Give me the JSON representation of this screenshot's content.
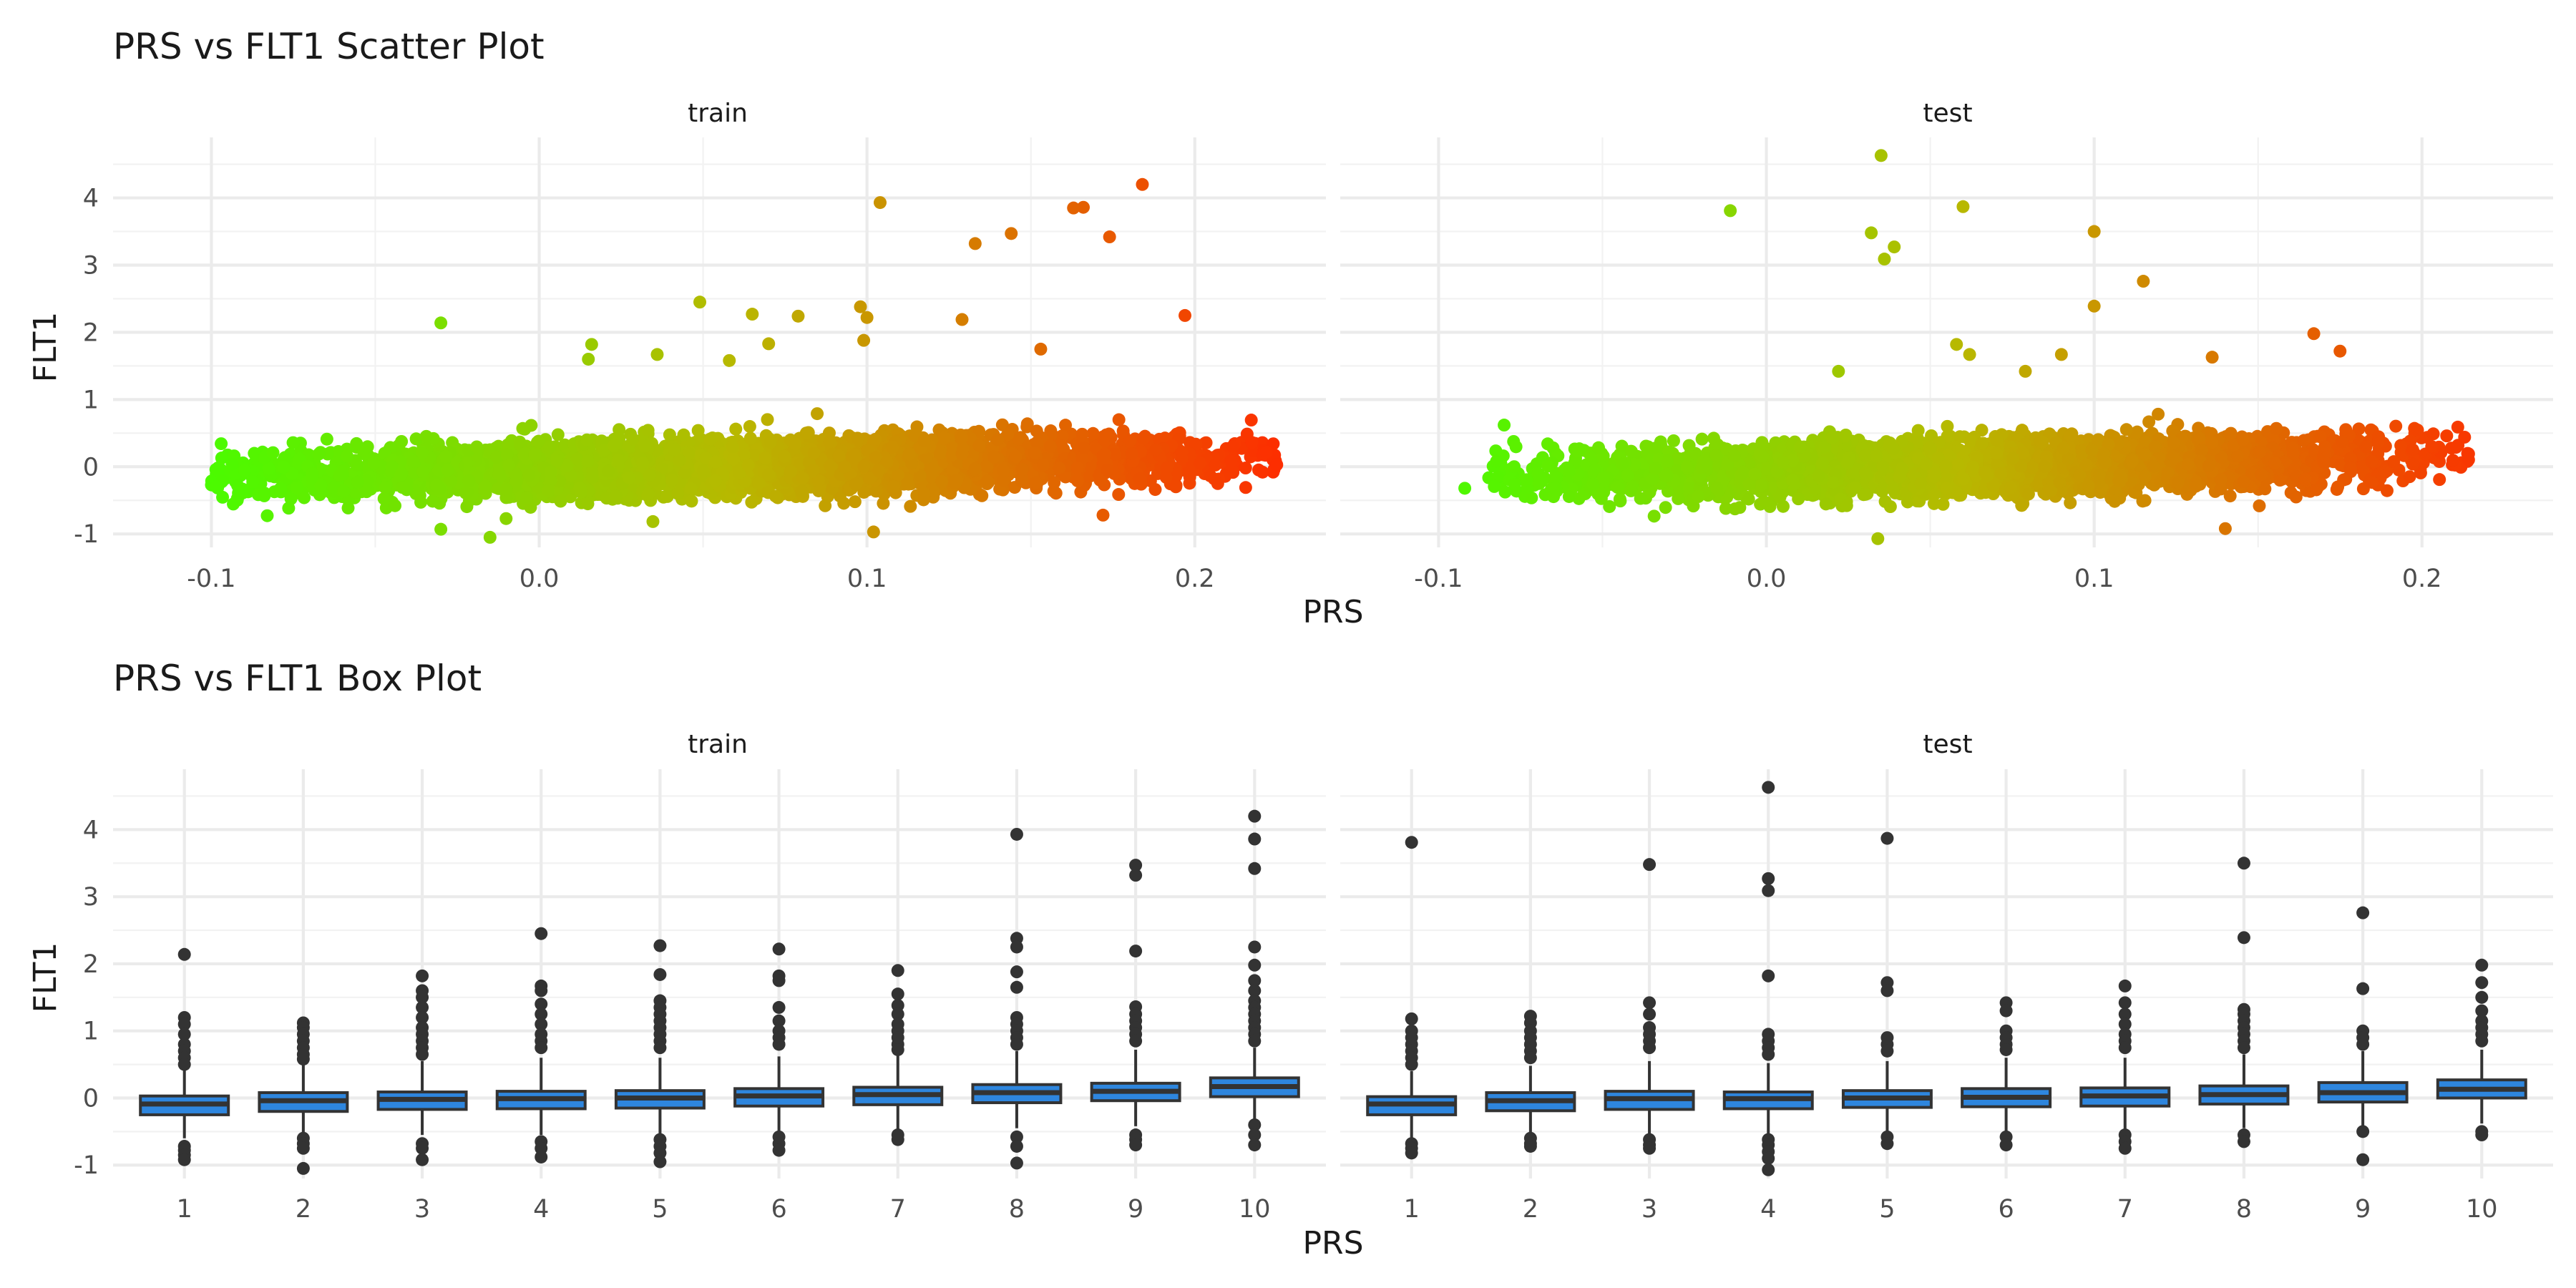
{
  "chart_data": [
    {
      "type": "scatter",
      "title": "PRS vs FLT1 Scatter Plot",
      "xlabel": "PRS",
      "ylabel": "FLT1",
      "xlim": [
        -0.13,
        0.24
      ],
      "ylim": [
        -1.2,
        4.9
      ],
      "x_ticks": [
        "-0.1",
        "0.0",
        "0.1",
        "0.2"
      ],
      "y_ticks": [
        "-1",
        "0",
        "1",
        "2",
        "3",
        "4"
      ],
      "grid": true,
      "color_scale": {
        "low": "#44ff00",
        "mid": "#b8b800",
        "high": "#ff2a00",
        "range": [
          -0.11,
          0.23
        ]
      },
      "panels": [
        {
          "name": "train",
          "bulk": {
            "x_range": [
              -0.1,
              0.225
            ],
            "y_range": [
              -1.0,
              1.2
            ],
            "y_slope_per_unit_x": 1.6
          },
          "outliers": [
            {
              "x": 0.184,
              "y": 4.2
            },
            {
              "x": 0.104,
              "y": 3.93
            },
            {
              "x": 0.166,
              "y": 3.86
            },
            {
              "x": 0.163,
              "y": 3.85
            },
            {
              "x": 0.144,
              "y": 3.47
            },
            {
              "x": 0.133,
              "y": 3.32
            },
            {
              "x": 0.174,
              "y": 3.42
            },
            {
              "x": 0.197,
              "y": 2.25
            },
            {
              "x": 0.129,
              "y": 2.19
            },
            {
              "x": -0.03,
              "y": 2.14
            },
            {
              "x": 0.049,
              "y": 2.45
            },
            {
              "x": 0.065,
              "y": 2.27
            },
            {
              "x": 0.098,
              "y": 2.38
            },
            {
              "x": 0.079,
              "y": 2.24
            },
            {
              "x": 0.1,
              "y": 2.22
            },
            {
              "x": 0.016,
              "y": 1.82
            },
            {
              "x": 0.036,
              "y": 1.67
            },
            {
              "x": 0.153,
              "y": 1.75
            },
            {
              "x": 0.099,
              "y": 1.88
            },
            {
              "x": 0.07,
              "y": 1.83
            },
            {
              "x": 0.015,
              "y": 1.6
            },
            {
              "x": 0.058,
              "y": 1.58
            },
            {
              "x": -0.092,
              "y": -0.28
            },
            {
              "x": 0.207,
              "y": -0.25
            },
            {
              "x": 0.225,
              "y": 0.03
            },
            {
              "x": -0.015,
              "y": -1.05
            },
            {
              "x": 0.102,
              "y": -0.97
            },
            {
              "x": 0.172,
              "y": -0.72
            },
            {
              "x": -0.03,
              "y": -0.93
            }
          ]
        },
        {
          "name": "test",
          "bulk": {
            "x_range": [
              -0.085,
              0.215
            ],
            "y_range": [
              -0.9,
              1.0
            ],
            "y_slope_per_unit_x": 1.4
          },
          "outliers": [
            {
              "x": 0.035,
              "y": 4.63
            },
            {
              "x": 0.06,
              "y": 3.87
            },
            {
              "x": -0.011,
              "y": 3.81
            },
            {
              "x": 0.1,
              "y": 3.5
            },
            {
              "x": 0.032,
              "y": 3.48
            },
            {
              "x": 0.039,
              "y": 3.27
            },
            {
              "x": 0.036,
              "y": 3.09
            },
            {
              "x": 0.115,
              "y": 2.76
            },
            {
              "x": 0.1,
              "y": 2.39
            },
            {
              "x": 0.167,
              "y": 1.98
            },
            {
              "x": 0.175,
              "y": 1.72
            },
            {
              "x": 0.058,
              "y": 1.82
            },
            {
              "x": 0.062,
              "y": 1.67
            },
            {
              "x": 0.079,
              "y": 1.42
            },
            {
              "x": 0.09,
              "y": 1.67
            },
            {
              "x": 0.136,
              "y": 1.63
            },
            {
              "x": 0.022,
              "y": 1.42
            },
            {
              "x": -0.092,
              "y": -0.32
            },
            {
              "x": 0.213,
              "y": 0.44
            },
            {
              "x": 0.034,
              "y": -1.07
            },
            {
              "x": 0.14,
              "y": -0.92
            },
            {
              "x": -0.08,
              "y": 0.62
            }
          ]
        }
      ]
    },
    {
      "type": "box",
      "title": "PRS vs FLT1 Box Plot",
      "xlabel": "PRS",
      "ylabel": "FLT1",
      "ylim": [
        -1.2,
        4.9
      ],
      "categories": [
        "1",
        "2",
        "3",
        "4",
        "5",
        "6",
        "7",
        "8",
        "9",
        "10"
      ],
      "y_ticks": [
        "-1",
        "0",
        "1",
        "2",
        "3",
        "4"
      ],
      "grid": true,
      "fill_color": "#2e86de",
      "panels": [
        {
          "name": "train",
          "boxes": [
            {
              "q1": -0.25,
              "median": -0.09,
              "q3": 0.03,
              "whisker_low": -0.6,
              "whisker_high": 0.45,
              "outliers": [
                2.14,
                1.2,
                1.1,
                0.95,
                0.8,
                0.7,
                0.6,
                0.5,
                -0.72,
                -0.78,
                -0.85,
                -0.92
              ]
            },
            {
              "q1": -0.2,
              "median": -0.04,
              "q3": 0.08,
              "whisker_low": -0.55,
              "whisker_high": 0.5,
              "outliers": [
                1.12,
                1.05,
                0.95,
                0.85,
                0.75,
                0.65,
                0.58,
                -0.6,
                -0.68,
                -0.75,
                -1.05
              ]
            },
            {
              "q1": -0.17,
              "median": -0.02,
              "q3": 0.09,
              "whisker_low": -0.55,
              "whisker_high": 0.55,
              "outliers": [
                1.82,
                1.6,
                1.5,
                1.35,
                1.2,
                1.05,
                0.95,
                0.85,
                0.75,
                0.65,
                -0.68,
                -0.75,
                -0.92
              ]
            },
            {
              "q1": -0.16,
              "median": -0.01,
              "q3": 0.1,
              "whisker_low": -0.55,
              "whisker_high": 0.6,
              "outliers": [
                2.45,
                1.67,
                1.6,
                1.4,
                1.25,
                1.1,
                0.95,
                0.85,
                0.75,
                -0.65,
                -0.75,
                -0.88
              ]
            },
            {
              "q1": -0.15,
              "median": 0.0,
              "q3": 0.11,
              "whisker_low": -0.55,
              "whisker_high": 0.6,
              "outliers": [
                2.27,
                1.84,
                1.45,
                1.35,
                1.25,
                1.15,
                1.05,
                0.95,
                0.85,
                0.75,
                -0.62,
                -0.72,
                -0.82,
                -0.95
              ]
            },
            {
              "q1": -0.12,
              "median": 0.03,
              "q3": 0.14,
              "whisker_low": -0.5,
              "whisker_high": 0.62,
              "outliers": [
                2.22,
                1.82,
                1.75,
                1.35,
                1.15,
                1.0,
                0.9,
                0.8,
                -0.58,
                -0.68,
                -0.78
              ]
            },
            {
              "q1": -0.1,
              "median": 0.05,
              "q3": 0.16,
              "whisker_low": -0.48,
              "whisker_high": 0.64,
              "outliers": [
                1.9,
                1.55,
                1.38,
                1.25,
                1.1,
                1.0,
                0.9,
                0.8,
                0.72,
                -0.55,
                -0.62
              ]
            },
            {
              "q1": -0.07,
              "median": 0.08,
              "q3": 0.2,
              "whisker_low": -0.45,
              "whisker_high": 0.7,
              "outliers": [
                3.93,
                2.38,
                2.25,
                1.88,
                1.65,
                1.2,
                1.1,
                1.0,
                0.9,
                0.8,
                -0.58,
                -0.72,
                -0.97
              ]
            },
            {
              "q1": -0.04,
              "median": 0.1,
              "q3": 0.22,
              "whisker_low": -0.42,
              "whisker_high": 0.72,
              "outliers": [
                3.47,
                3.32,
                2.19,
                1.36,
                1.25,
                1.15,
                1.05,
                0.95,
                0.85,
                -0.55,
                -0.62,
                -0.7
              ]
            },
            {
              "q1": 0.02,
              "median": 0.17,
              "q3": 0.3,
              "whisker_low": -0.35,
              "whisker_high": 0.75,
              "outliers": [
                4.2,
                3.86,
                3.42,
                2.25,
                1.98,
                1.75,
                1.6,
                1.45,
                1.35,
                1.25,
                1.15,
                1.05,
                0.95,
                0.85,
                -0.4,
                -0.55,
                -0.7
              ]
            }
          ]
        },
        {
          "name": "test",
          "boxes": [
            {
              "q1": -0.25,
              "median": -0.09,
              "q3": 0.02,
              "whisker_low": -0.6,
              "whisker_high": 0.4,
              "outliers": [
                3.81,
                1.18,
                1.0,
                0.9,
                0.8,
                0.7,
                0.6,
                0.5,
                -0.68,
                -0.75,
                -0.82
              ]
            },
            {
              "q1": -0.19,
              "median": -0.04,
              "q3": 0.08,
              "whisker_low": -0.52,
              "whisker_high": 0.48,
              "outliers": [
                1.22,
                1.12,
                1.0,
                0.9,
                0.8,
                0.7,
                0.6,
                -0.6,
                -0.68,
                -0.72
              ]
            },
            {
              "q1": -0.17,
              "median": -0.01,
              "q3": 0.1,
              "whisker_low": -0.55,
              "whisker_high": 0.55,
              "outliers": [
                3.48,
                1.42,
                1.25,
                1.05,
                0.95,
                0.85,
                0.75,
                -0.62,
                -0.7,
                -0.75
              ]
            },
            {
              "q1": -0.16,
              "median": -0.01,
              "q3": 0.09,
              "whisker_low": -0.55,
              "whisker_high": 0.52,
              "outliers": [
                4.63,
                3.27,
                3.09,
                1.82,
                0.95,
                0.85,
                0.75,
                0.65,
                -0.62,
                -0.7,
                -0.8,
                -0.9,
                -1.07
              ]
            },
            {
              "q1": -0.14,
              "median": 0.0,
              "q3": 0.11,
              "whisker_low": -0.5,
              "whisker_high": 0.55,
              "outliers": [
                3.87,
                1.72,
                1.6,
                0.9,
                0.8,
                0.7,
                -0.58,
                -0.68
              ]
            },
            {
              "q1": -0.13,
              "median": 0.01,
              "q3": 0.14,
              "whisker_low": -0.5,
              "whisker_high": 0.6,
              "outliers": [
                1.42,
                1.3,
                1.0,
                0.9,
                0.8,
                0.72,
                -0.58,
                -0.7
              ]
            },
            {
              "q1": -0.12,
              "median": 0.03,
              "q3": 0.15,
              "whisker_low": -0.5,
              "whisker_high": 0.6,
              "outliers": [
                1.67,
                1.42,
                1.25,
                1.1,
                0.95,
                0.85,
                0.75,
                -0.55,
                -0.65,
                -0.75
              ]
            },
            {
              "q1": -0.09,
              "median": 0.05,
              "q3": 0.18,
              "whisker_low": -0.45,
              "whisker_high": 0.65,
              "outliers": [
                3.5,
                2.39,
                1.32,
                1.25,
                1.15,
                1.05,
                0.95,
                0.85,
                0.75,
                -0.55,
                -0.65
              ]
            },
            {
              "q1": -0.06,
              "median": 0.08,
              "q3": 0.23,
              "whisker_low": -0.42,
              "whisker_high": 0.7,
              "outliers": [
                2.76,
                1.63,
                1.0,
                0.9,
                0.8,
                -0.5,
                -0.92
              ]
            },
            {
              "q1": 0.0,
              "median": 0.13,
              "q3": 0.27,
              "whisker_low": -0.38,
              "whisker_high": 0.72,
              "outliers": [
                1.98,
                1.72,
                1.5,
                1.3,
                1.15,
                1.05,
                0.95,
                0.85,
                -0.5,
                -0.55
              ]
            }
          ]
        }
      ]
    }
  ]
}
